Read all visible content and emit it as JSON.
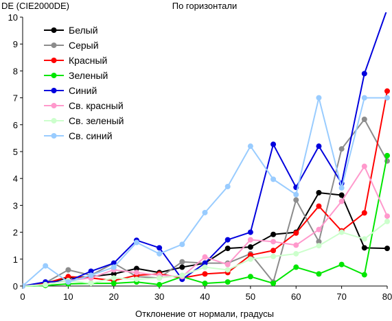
{
  "chart_data": {
    "type": "line",
    "title": "По горизонтали",
    "ylabel": "DE (CIE2000DE)",
    "xlabel": "Отклонение от нормали, градусы",
    "x": [
      0,
      5,
      10,
      15,
      20,
      25,
      30,
      35,
      40,
      45,
      50,
      55,
      60,
      65,
      70,
      75,
      80
    ],
    "xlim": [
      0,
      80
    ],
    "ylim": [
      0,
      10
    ],
    "xticks": [
      "0",
      "10",
      "20",
      "30",
      "40",
      "50",
      "60",
      "70",
      "80"
    ],
    "yticks": [
      "0",
      "1",
      "2",
      "3",
      "4",
      "5",
      "6",
      "7",
      "8",
      "9",
      "10"
    ],
    "legend_position": "top-left",
    "grid": false,
    "series": [
      {
        "name": "Белый",
        "color": "#000000",
        "values": [
          0,
          0.12,
          0.3,
          0.35,
          0.45,
          0.65,
          0.5,
          0.7,
          0.85,
          1.4,
          1.45,
          1.92,
          2.0,
          3.47,
          3.38,
          1.42,
          1.4
        ]
      },
      {
        "name": "Серый",
        "color": "#8c8c8c",
        "values": [
          0,
          0.12,
          0.6,
          0.4,
          0.85,
          0.35,
          0.3,
          0.9,
          0.85,
          0.85,
          1.2,
          0.15,
          3.2,
          1.65,
          5.1,
          6.2,
          4.65
        ]
      },
      {
        "name": "Красный",
        "color": "#ff0000",
        "values": [
          0,
          0.1,
          0.35,
          0.3,
          0.2,
          0.4,
          0.45,
          0.3,
          0.45,
          0.5,
          1.15,
          1.32,
          1.97,
          2.97,
          2.05,
          2.72,
          7.25
        ]
      },
      {
        "name": "Зеленый",
        "color": "#00e600",
        "values": [
          0,
          0.02,
          0.08,
          0.1,
          0.1,
          0.15,
          0.05,
          0.35,
          0.1,
          0.15,
          0.35,
          0.1,
          0.7,
          0.45,
          0.8,
          0.42,
          4.85
        ]
      },
      {
        "name": "Синий",
        "color": "#0000dd",
        "values": [
          0,
          0.15,
          0.18,
          0.55,
          0.85,
          1.7,
          1.42,
          0.25,
          0.85,
          1.72,
          2.0,
          5.27,
          3.67,
          5.2,
          3.82,
          7.9,
          10.3
        ]
      },
      {
        "name": "Св. красный",
        "color": "#ff99cc",
        "values": [
          0,
          0.05,
          0.2,
          0.3,
          0.6,
          0.5,
          0.4,
          0.35,
          1.08,
          0.8,
          1.72,
          1.65,
          1.52,
          2.1,
          3.15,
          4.45,
          2.6
        ]
      },
      {
        "name": "Св. зеленый",
        "color": "#ccffcc",
        "values": [
          0,
          0.05,
          0.2,
          0.1,
          0.3,
          0.25,
          0.3,
          0.4,
          0.7,
          0.6,
          1.0,
          1.1,
          1.2,
          1.5,
          2.0,
          1.75,
          2.4
        ]
      },
      {
        "name": "Св. синий",
        "color": "#99ccff",
        "values": [
          0,
          0.75,
          0.15,
          0.4,
          0.7,
          1.62,
          1.2,
          1.55,
          2.73,
          3.7,
          5.2,
          3.97,
          3.4,
          7.0,
          3.65,
          7.0,
          7.0
        ]
      }
    ]
  }
}
